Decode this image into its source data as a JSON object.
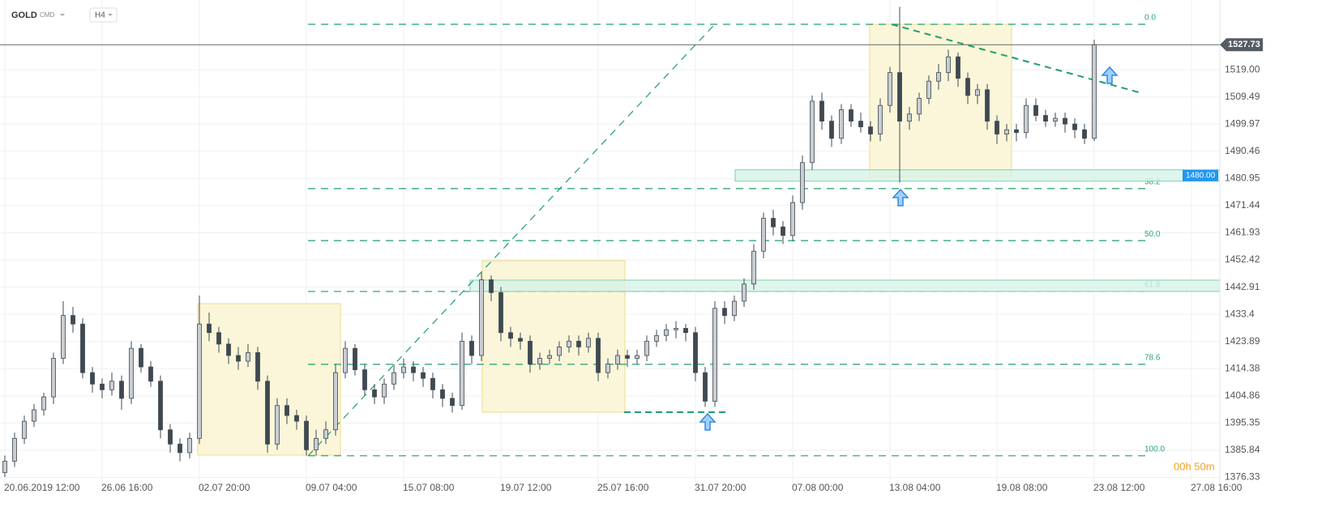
{
  "header": {
    "symbol": "GOLD",
    "market": "CMD",
    "interval": "H4"
  },
  "chart_data": {
    "type": "candlestick",
    "open": [
      1378,
      1382,
      1390,
      1396,
      1400,
      1404.5,
      1418,
      1433,
      1430,
      1413,
      1409,
      1407,
      1410,
      1404,
      1421.5,
      1415,
      1410,
      1393,
      1388,
      1385,
      1390,
      1430,
      1427,
      1423,
      1419,
      1417,
      1420,
      1410,
      1388,
      1401.5,
      1398,
      1396,
      1386,
      1390,
      1393,
      1413,
      1421.5,
      1414,
      1407,
      1404.5,
      1409,
      1413,
      1415,
      1413,
      1411,
      1407,
      1404,
      1401.5,
      1424,
      1419,
      1445.5,
      1441,
      1427,
      1425,
      1424,
      1416,
      1418,
      1419,
      1422,
      1424,
      1422,
      1425,
      1413,
      1416,
      1419,
      1418,
      1419,
      1424,
      1426,
      1428,
      1428.5,
      1427,
      1413,
      1403,
      1435.5,
      1433,
      1438,
      1444,
      1455.5,
      1467,
      1464,
      1461,
      1472.5,
      1486.5,
      1508,
      1501,
      1495,
      1505,
      1501,
      1499,
      1496.5,
      1506.5,
      1518,
      1501,
      1503.5,
      1509,
      1515,
      1518,
      1523.5,
      1516,
      1510,
      1512,
      1501,
      1496.5,
      1498,
      1497,
      1506.5,
      1503,
      1501,
      1502,
      1500,
      1498,
      1495
    ],
    "high": [
      1384,
      1392,
      1398,
      1402,
      1406,
      1420,
      1438,
      1436,
      1432,
      1415,
      1411,
      1413,
      1412,
      1424,
      1423,
      1417,
      1412,
      1395,
      1390,
      1392,
      1440,
      1434,
      1429,
      1425,
      1422,
      1423,
      1422,
      1412,
      1404,
      1404,
      1400,
      1398,
      1393,
      1396,
      1416,
      1424,
      1423,
      1416,
      1409,
      1411,
      1416,
      1418,
      1417,
      1415,
      1413,
      1409,
      1406,
      1427,
      1426,
      1448,
      1447,
      1443,
      1429,
      1427,
      1426,
      1420,
      1421,
      1424,
      1426,
      1426,
      1427,
      1427,
      1418,
      1421,
      1421,
      1421,
      1426,
      1428,
      1430,
      1431,
      1430,
      1429,
      1415,
      1438,
      1438,
      1440,
      1446,
      1458,
      1469,
      1470,
      1466,
      1475,
      1489,
      1510,
      1511,
      1503,
      1507,
      1507,
      1504,
      1501,
      1509,
      1520,
      1541,
      1506,
      1511,
      1517,
      1521,
      1526,
      1525,
      1518,
      1514,
      1514,
      1503,
      1500,
      1500,
      1509,
      1509,
      1505,
      1504,
      1504,
      1502,
      1500,
      1529.5
    ],
    "low": [
      1376.5,
      1380,
      1388,
      1394,
      1398,
      1402,
      1416,
      1427,
      1411,
      1406,
      1404,
      1405,
      1400,
      1402,
      1413,
      1408,
      1390,
      1385,
      1382,
      1383,
      1388,
      1424,
      1420,
      1416,
      1414,
      1415,
      1407,
      1385,
      1386,
      1395,
      1393,
      1384,
      1384,
      1388,
      1391,
      1411,
      1412,
      1405,
      1402,
      1402,
      1407,
      1411,
      1410,
      1408,
      1404,
      1401,
      1399,
      1400,
      1416,
      1417,
      1438,
      1424,
      1422,
      1421,
      1413,
      1414,
      1416,
      1417,
      1420,
      1419,
      1420,
      1410,
      1411,
      1414,
      1415,
      1416,
      1417,
      1422,
      1424,
      1425,
      1424,
      1410,
      1401,
      1401,
      1430,
      1431,
      1436,
      1442,
      1453,
      1461,
      1458,
      1459,
      1470,
      1484,
      1498,
      1492,
      1493,
      1499,
      1497,
      1494,
      1494,
      1504,
      1479.5,
      1498,
      1501,
      1507,
      1512,
      1515,
      1513,
      1507,
      1507,
      1498,
      1493,
      1494,
      1494,
      1495,
      1501,
      1499,
      1499,
      1497,
      1495,
      1493,
      1494
    ],
    "close": [
      1382,
      1390,
      1396,
      1400,
      1404.5,
      1418,
      1433,
      1430,
      1413,
      1409,
      1407,
      1410,
      1404,
      1421.5,
      1415,
      1410,
      1393,
      1388,
      1385,
      1390,
      1430,
      1427,
      1423,
      1419,
      1417,
      1420,
      1410,
      1388,
      1401.5,
      1398,
      1396,
      1386,
      1390,
      1393,
      1413,
      1421.5,
      1414,
      1407,
      1404.5,
      1409,
      1413,
      1415,
      1413,
      1411,
      1407,
      1404,
      1401.5,
      1424,
      1419,
      1445.5,
      1441,
      1427,
      1425,
      1424,
      1416,
      1418,
      1419,
      1422,
      1424,
      1422,
      1425,
      1413,
      1416,
      1419,
      1418,
      1419,
      1424,
      1426,
      1428,
      1428.5,
      1427,
      1413,
      1403,
      1435.5,
      1433,
      1438,
      1444,
      1455.5,
      1467,
      1464,
      1461,
      1472.5,
      1486.5,
      1508,
      1501,
      1495,
      1505,
      1501,
      1499,
      1496.5,
      1506.5,
      1518,
      1501,
      1503.5,
      1509,
      1515,
      1518,
      1523.5,
      1516,
      1510,
      1512,
      1501,
      1496.5,
      1498,
      1497,
      1506.5,
      1503,
      1501,
      1502,
      1500,
      1498,
      1495,
      1527.73
    ],
    "up_color": "#c9cdd2",
    "down_color": "#3f4951",
    "xlim": [
      -0.5,
      124.5
    ],
    "xticks": [
      {
        "value": 0,
        "label": "20.06.2019 12:00"
      },
      {
        "value": 10,
        "label": "26.06 16:00"
      },
      {
        "value": 20,
        "label": "02.07 20:00"
      },
      {
        "value": 31,
        "label": "09.07 04:00"
      },
      {
        "value": 41,
        "label": "15.07 08:00"
      },
      {
        "value": 51,
        "label": "19.07 12:00"
      },
      {
        "value": 61,
        "label": "25.07 16:00"
      },
      {
        "value": 71,
        "label": "31.07 20:00"
      },
      {
        "value": 81,
        "label": "07.08 00:00"
      },
      {
        "value": 91,
        "label": "13.08 04:00"
      },
      {
        "value": 102,
        "label": "19.08 08:00"
      },
      {
        "value": 112,
        "label": "23.08 12:00"
      },
      {
        "value": 122,
        "label": "27.08 16:00"
      }
    ],
    "ylim": [
      1374.5,
      1543.4
    ],
    "yticks": [
      {
        "value": 1519,
        "label": "1519.00"
      },
      1509.49,
      1499.97,
      1490.46,
      1480.95,
      1471.44,
      1461.93,
      1452.42,
      1442.91,
      1433.4,
      1423.89,
      1414.38,
      1404.86,
      1395.35,
      1385.84,
      1376.33
    ],
    "grid": true,
    "current_price": {
      "value": 1527.73,
      "label": "1527.73"
    },
    "support": {
      "value": 1480,
      "label": "1480.00"
    },
    "fib_levels": [
      {
        "label": "0.0",
        "value": 1534.9
      },
      {
        "label": "38.2",
        "value": 1477.4
      },
      {
        "label": "50.0",
        "value": 1459.2
      },
      {
        "label": "61.8",
        "value": 1441.4
      },
      {
        "label": "78.6",
        "value": 1415.9
      },
      {
        "label": "100.0",
        "value": 1383.9
      }
    ],
    "timer": "00h 50m"
  }
}
